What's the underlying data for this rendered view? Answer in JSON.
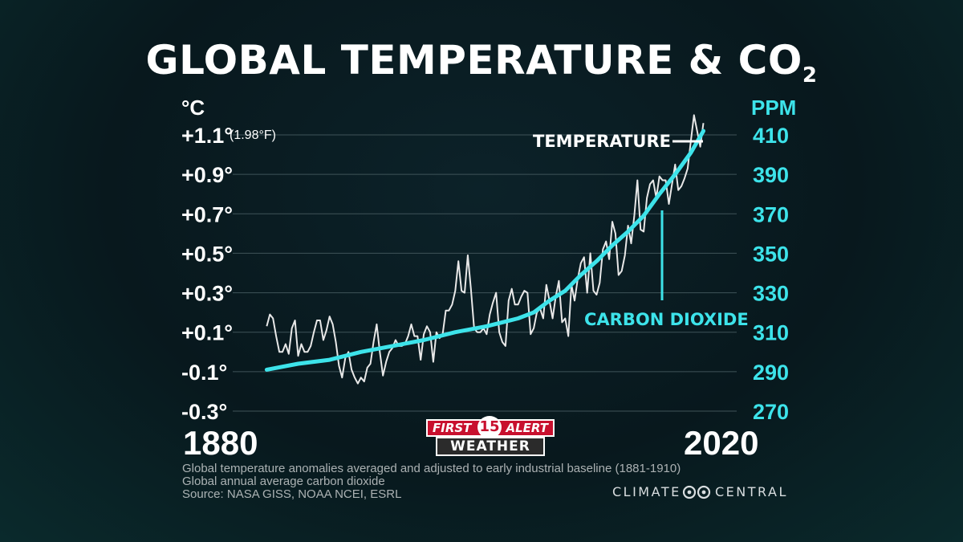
{
  "title": {
    "main": "GLOBAL TEMPERATURE & CO",
    "sub": "2"
  },
  "chart_data": {
    "type": "line",
    "y_left_unit": "°C",
    "y_left_note": "(1.98°F)",
    "y_right_unit": "PPM",
    "y_left_ticks": [
      "+1.1°",
      "+0.9°",
      "+0.7°",
      "+0.5°",
      "+0.3°",
      "+0.1°",
      "-0.1°",
      "-0.3°"
    ],
    "y_right_ticks": [
      "410",
      "390",
      "370",
      "350",
      "330",
      "310",
      "290",
      "270"
    ],
    "x_ticks": [
      "1880",
      "2020"
    ],
    "ylim_left": [
      -0.3,
      1.1
    ],
    "ylim_right": [
      270,
      410
    ],
    "xlim": [
      1873,
      2025
    ],
    "grid": true,
    "series": [
      {
        "name": "TEMPERATURE",
        "color": "#e8e8e8",
        "x": [
          1880,
          1881,
          1882,
          1883,
          1884,
          1885,
          1886,
          1887,
          1888,
          1889,
          1890,
          1891,
          1892,
          1893,
          1894,
          1895,
          1896,
          1897,
          1898,
          1899,
          1900,
          1901,
          1902,
          1903,
          1904,
          1905,
          1906,
          1907,
          1908,
          1909,
          1910,
          1911,
          1912,
          1913,
          1914,
          1915,
          1916,
          1917,
          1918,
          1919,
          1920,
          1921,
          1922,
          1923,
          1924,
          1925,
          1926,
          1927,
          1928,
          1929,
          1930,
          1931,
          1932,
          1933,
          1934,
          1935,
          1936,
          1937,
          1938,
          1939,
          1940,
          1941,
          1942,
          1943,
          1944,
          1945,
          1946,
          1947,
          1948,
          1949,
          1950,
          1951,
          1952,
          1953,
          1954,
          1955,
          1956,
          1957,
          1958,
          1959,
          1960,
          1961,
          1962,
          1963,
          1964,
          1965,
          1966,
          1967,
          1968,
          1969,
          1970,
          1971,
          1972,
          1973,
          1974,
          1975,
          1976,
          1977,
          1978,
          1979,
          1980,
          1981,
          1982,
          1983,
          1984,
          1985,
          1986,
          1987,
          1988,
          1989,
          1990,
          1991,
          1992,
          1993,
          1994,
          1995,
          1996,
          1997,
          1998,
          1999,
          2000,
          2001,
          2002,
          2003,
          2004,
          2005,
          2006,
          2007,
          2008,
          2009,
          2010,
          2011,
          2012,
          2013,
          2014,
          2015,
          2016,
          2017,
          2018,
          2019
        ],
        "values": [
          0.13,
          0.19,
          0.17,
          0.08,
          0.0,
          0.0,
          0.04,
          -0.01,
          0.12,
          0.16,
          -0.02,
          0.04,
          0.0,
          0.0,
          0.03,
          0.1,
          0.16,
          0.16,
          0.06,
          0.11,
          0.18,
          0.14,
          0.05,
          -0.07,
          -0.13,
          -0.03,
          0.0,
          -0.09,
          -0.13,
          -0.16,
          -0.13,
          -0.15,
          -0.08,
          -0.06,
          0.05,
          0.14,
          0.0,
          -0.12,
          -0.05,
          0.0,
          0.02,
          0.06,
          0.03,
          0.03,
          0.04,
          0.08,
          0.14,
          0.08,
          0.08,
          -0.04,
          0.09,
          0.13,
          0.1,
          -0.05,
          0.1,
          0.07,
          0.09,
          0.21,
          0.21,
          0.24,
          0.31,
          0.46,
          0.31,
          0.3,
          0.49,
          0.32,
          0.12,
          0.1,
          0.1,
          0.12,
          0.09,
          0.19,
          0.25,
          0.3,
          0.1,
          0.05,
          0.03,
          0.26,
          0.32,
          0.24,
          0.24,
          0.28,
          0.31,
          0.3,
          0.09,
          0.12,
          0.2,
          0.22,
          0.17,
          0.34,
          0.26,
          0.17,
          0.28,
          0.36,
          0.15,
          0.17,
          0.08,
          0.34,
          0.26,
          0.37,
          0.45,
          0.48,
          0.3,
          0.5,
          0.31,
          0.29,
          0.35,
          0.52,
          0.56,
          0.47,
          0.66,
          0.6,
          0.39,
          0.41,
          0.49,
          0.64,
          0.55,
          0.69,
          0.87,
          0.62,
          0.61,
          0.78,
          0.85,
          0.87,
          0.78,
          0.89,
          0.87,
          0.87,
          0.75,
          0.85,
          0.95,
          0.82,
          0.84,
          0.88,
          0.93,
          1.07,
          1.2,
          1.12,
          1.04,
          1.16
        ]
      },
      {
        "name": "CARBON DIOXIDE",
        "color": "#3de3ea",
        "x": [
          1880,
          1890,
          1900,
          1910,
          1920,
          1930,
          1940,
          1950,
          1955,
          1960,
          1965,
          1970,
          1975,
          1980,
          1985,
          1990,
          1995,
          2000,
          2005,
          2010,
          2015,
          2019
        ],
        "values": [
          291,
          294,
          296,
          300,
          303,
          306,
          310,
          313,
          315,
          317,
          320,
          326,
          331,
          339,
          346,
          354,
          361,
          369,
          380,
          390,
          401,
          412
        ]
      }
    ]
  },
  "annotations": {
    "temperature": "TEMPERATURE",
    "carbon_dioxide": "CARBON DIOXIDE"
  },
  "logo": {
    "first": "FIRST",
    "number": "15",
    "alert": "ALERT",
    "weather": "WEATHER",
    "colors": {
      "red": "#c8102e",
      "dark": "#2b2b2b"
    }
  },
  "footnotes": [
    "Global temperature anomalies averaged and adjusted to early industrial baseline (1881-1910)",
    "Global annual average carbon dioxide",
    "Source: NASA GISS, NOAA NCEI, ESRL"
  ],
  "brand": {
    "left": "CLIMATE",
    "right": "CENTRAL",
    "icon": "climate-central-infinity-icon"
  }
}
